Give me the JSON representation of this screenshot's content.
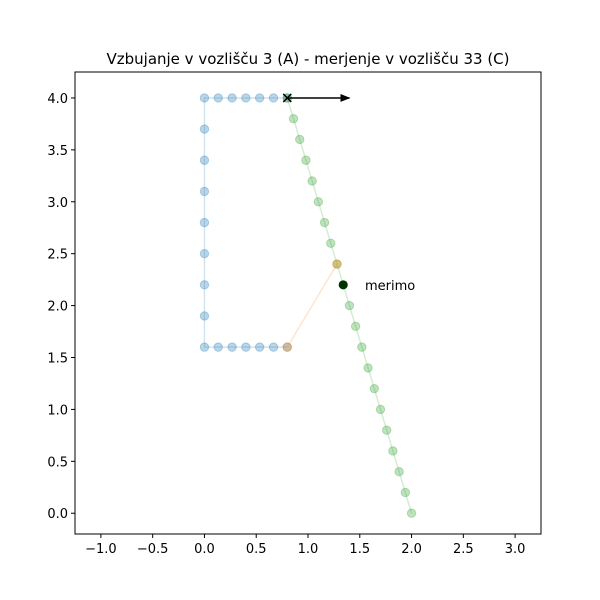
{
  "chart_data": {
    "type": "scatter",
    "title": "Vzbujanje v vozlišču 3  (A) - merjenje v vozlišču 33 (C)",
    "xlabel": "",
    "ylabel": "",
    "xlim": [
      -1.25,
      3.25
    ],
    "ylim": [
      -0.2,
      4.25
    ],
    "x_ticks": [
      -1.0,
      -0.5,
      0.0,
      0.5,
      1.0,
      1.5,
      2.0,
      2.5,
      3.0
    ],
    "x_tick_labels": [
      "−1.0",
      "−0.5",
      "0.0",
      "0.5",
      "1.0",
      "1.5",
      "2.0",
      "2.5",
      "3.0"
    ],
    "y_ticks": [
      0.0,
      0.5,
      1.0,
      1.5,
      2.0,
      2.5,
      3.0,
      3.5,
      4.0
    ],
    "y_tick_labels": [
      "0.0",
      "0.5",
      "1.0",
      "1.5",
      "2.0",
      "2.5",
      "3.0",
      "3.5",
      "4.0"
    ],
    "grid": false,
    "series": [
      {
        "color": "#1f77b4",
        "points": [
          [
            0.8,
            1.6
          ],
          [
            0.667,
            1.6
          ],
          [
            0.533,
            1.6
          ],
          [
            0.4,
            1.6
          ],
          [
            0.267,
            1.6
          ],
          [
            0.133,
            1.6
          ],
          [
            0.0,
            1.6
          ],
          [
            0.0,
            1.9
          ],
          [
            0.0,
            2.2
          ],
          [
            0.0,
            2.5
          ],
          [
            0.0,
            2.8
          ],
          [
            0.0,
            3.1
          ],
          [
            0.0,
            3.4
          ],
          [
            0.0,
            3.7
          ],
          [
            0.0,
            4.0
          ],
          [
            0.133,
            4.0
          ],
          [
            0.267,
            4.0
          ],
          [
            0.4,
            4.0
          ],
          [
            0.533,
            4.0
          ],
          [
            0.667,
            4.0
          ],
          [
            0.8,
            4.0
          ]
        ]
      },
      {
        "color": "#2ca02c",
        "points": [
          [
            0.8,
            4.0
          ],
          [
            0.86,
            3.8
          ],
          [
            0.92,
            3.6
          ],
          [
            0.98,
            3.4
          ],
          [
            1.04,
            3.2
          ],
          [
            1.1,
            3.0
          ],
          [
            1.16,
            2.8
          ],
          [
            1.22,
            2.6
          ],
          [
            1.28,
            2.4
          ],
          [
            1.34,
            2.2
          ],
          [
            1.4,
            2.0
          ],
          [
            1.46,
            1.8
          ],
          [
            1.52,
            1.6
          ],
          [
            1.58,
            1.4
          ],
          [
            1.64,
            1.2
          ],
          [
            1.7,
            1.0
          ],
          [
            1.76,
            0.8
          ],
          [
            1.82,
            0.6
          ],
          [
            1.88,
            0.4
          ],
          [
            1.94,
            0.2
          ],
          [
            2.0,
            0.0
          ]
        ]
      },
      {
        "color": "#ff7f0e",
        "points": [
          [
            0.8,
            1.6
          ],
          [
            1.28,
            2.4
          ]
        ]
      }
    ],
    "excitation": {
      "node": [
        0.8,
        4.0
      ],
      "arrow_to": [
        1.4,
        4.0
      ],
      "marker": "x"
    },
    "measurement": {
      "point": [
        1.34,
        2.2
      ],
      "color": "#003300",
      "label": "merimo",
      "label_at": [
        1.55,
        2.2
      ]
    }
  }
}
